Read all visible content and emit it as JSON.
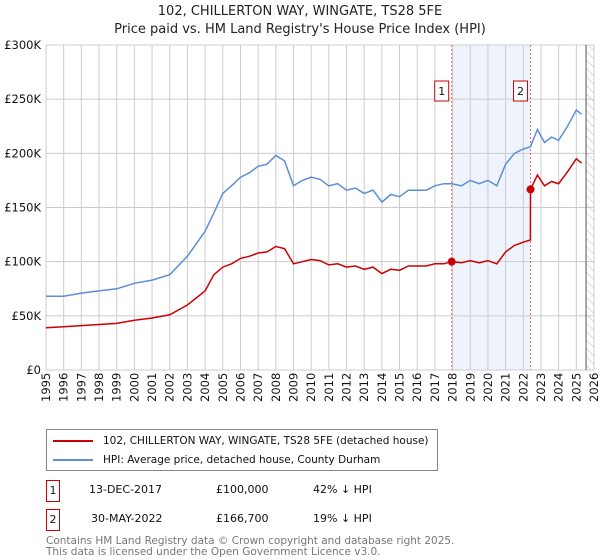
{
  "title": "102, CHILLERTON WAY, WINGATE, TS28 5FE",
  "subtitle": "Price paid vs. HM Land Registry's House Price Index (HPI)",
  "chart_data": {
    "type": "line",
    "ylim": [
      0,
      300000
    ],
    "xlim": [
      1995,
      2026
    ],
    "yticks": [
      {
        "v": 0,
        "label": "£0"
      },
      {
        "v": 50000,
        "label": "£50K"
      },
      {
        "v": 100000,
        "label": "£100K"
      },
      {
        "v": 150000,
        "label": "£150K"
      },
      {
        "v": 200000,
        "label": "£200K"
      },
      {
        "v": 250000,
        "label": "£250K"
      },
      {
        "v": 300000,
        "label": "£300K"
      }
    ],
    "xticks": [
      "1995",
      "1996",
      "1997",
      "1998",
      "1999",
      "2000",
      "2001",
      "2002",
      "2003",
      "2004",
      "2005",
      "2006",
      "2007",
      "2008",
      "2009",
      "2010",
      "2011",
      "2012",
      "2013",
      "2014",
      "2015",
      "2016",
      "2017",
      "2018",
      "2019",
      "2020",
      "2021",
      "2022",
      "2023",
      "2024",
      "2025",
      "2026"
    ],
    "grid": true,
    "colors": {
      "property": "#cc0000",
      "hpi": "#5b8fd4",
      "shade": "#eef3fc"
    },
    "shaded_range": [
      2017.95,
      2022.41
    ],
    "forecast_hatch_from": 2025.55,
    "series": [
      {
        "name": "102, CHILLERTON WAY, WINGATE, TS28 5FE (detached house)",
        "key": "property",
        "x": [
          1995,
          1996,
          1997,
          1998,
          1999,
          2000,
          2001,
          2002,
          2003,
          2004,
          2004.5,
          2005,
          2005.5,
          2006,
          2006.5,
          2007,
          2007.5,
          2008,
          2008.5,
          2009,
          2009.5,
          2010,
          2010.5,
          2011,
          2011.5,
          2012,
          2012.5,
          2013,
          2013.5,
          2014,
          2014.5,
          2015,
          2015.5,
          2016,
          2016.5,
          2017,
          2017.5,
          2017.95,
          2018.5,
          2019,
          2019.5,
          2020,
          2020.5,
          2021,
          2021.5,
          2022,
          2022.4,
          2022.41,
          2022.8,
          2023.2,
          2023.6,
          2024,
          2024.5,
          2025,
          2025.3
        ],
        "y": [
          39000,
          40000,
          41000,
          42000,
          43000,
          46000,
          48000,
          51000,
          60000,
          73000,
          88000,
          95000,
          98000,
          103000,
          105000,
          108000,
          109000,
          114000,
          112000,
          98000,
          100000,
          102000,
          101000,
          97000,
          98000,
          95000,
          96000,
          93000,
          95000,
          89000,
          93000,
          92000,
          96000,
          96000,
          96000,
          98000,
          98000,
          100000,
          99000,
          101000,
          99000,
          101000,
          98000,
          109000,
          115000,
          118000,
          120000,
          166700,
          180000,
          170000,
          174000,
          172000,
          183000,
          195000,
          191000
        ]
      },
      {
        "name": "HPI: Average price, detached house, County Durham",
        "key": "hpi",
        "x": [
          1995,
          1996,
          1997,
          1998,
          1999,
          2000,
          2001,
          2002,
          2003,
          2004,
          2004.5,
          2005,
          2005.5,
          2006,
          2006.5,
          2007,
          2007.5,
          2008,
          2008.5,
          2009,
          2009.5,
          2010,
          2010.5,
          2011,
          2011.5,
          2012,
          2012.5,
          2013,
          2013.5,
          2014,
          2014.5,
          2015,
          2015.5,
          2016,
          2016.5,
          2017,
          2017.5,
          2017.95,
          2018.5,
          2019,
          2019.5,
          2020,
          2020.5,
          2021,
          2021.5,
          2022,
          2022.4,
          2022.8,
          2023.2,
          2023.6,
          2024,
          2024.5,
          2025,
          2025.3
        ],
        "y": [
          68000,
          68000,
          71000,
          73000,
          75000,
          80000,
          83000,
          88000,
          105000,
          128000,
          145000,
          163000,
          170000,
          178000,
          182000,
          188000,
          190000,
          198000,
          193000,
          170000,
          175000,
          178000,
          176000,
          170000,
          172000,
          166000,
          168000,
          163000,
          166000,
          155000,
          162000,
          160000,
          166000,
          166000,
          166000,
          170000,
          172000,
          172000,
          170000,
          175000,
          172000,
          175000,
          170000,
          190000,
          200000,
          204000,
          206000,
          222000,
          210000,
          215000,
          212000,
          225000,
          240000,
          236000
        ]
      }
    ],
    "annotations": [
      {
        "label": "1",
        "x": 2017.95,
        "y": 100000
      },
      {
        "label": "2",
        "x": 2022.41,
        "y": 166700
      }
    ]
  },
  "legend": {
    "property": "102, CHILLERTON WAY, WINGATE, TS28 5FE (detached house)",
    "hpi": "HPI: Average price, detached house, County Durham"
  },
  "transactions": [
    {
      "num": "1",
      "date": "13-DEC-2017",
      "price": "£100,000",
      "hpi": "42% ↓ HPI"
    },
    {
      "num": "2",
      "date": "30-MAY-2022",
      "price": "£166,700",
      "hpi": "19% ↓ HPI"
    }
  ],
  "footer": {
    "line1": "Contains HM Land Registry data © Crown copyright and database right 2025.",
    "line2": "This data is licensed under the Open Government Licence v3.0."
  }
}
